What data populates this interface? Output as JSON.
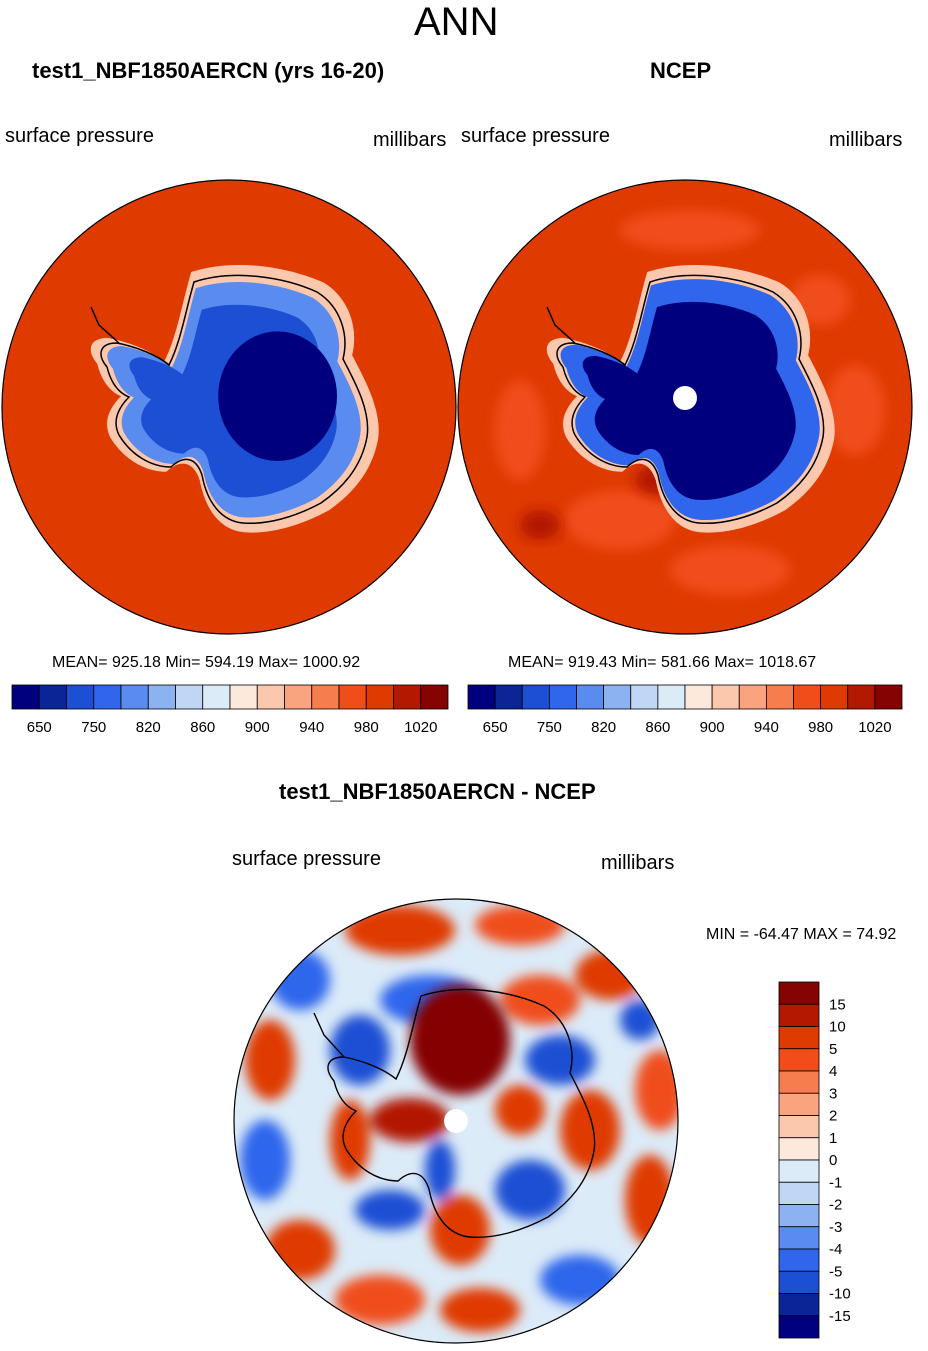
{
  "page": {
    "main_title": "ANN"
  },
  "panels": {
    "model": {
      "title": "test1_NBF1850AERCN (yrs 16-20)",
      "left_label": "surface pressure",
      "right_label": "millibars",
      "stats": "MEAN= 925.18  Min= 594.19  Max= 1000.92"
    },
    "obs": {
      "title": "NCEP",
      "left_label": "surface pressure",
      "right_label": "millibars",
      "stats": "MEAN= 919.43  Min= 581.66  Max= 1018.67"
    },
    "diff": {
      "title": "test1_NBF1850AERCN - NCEP",
      "left_label": "surface pressure",
      "right_label": "millibars",
      "stats": "MIN = -64.47 MAX =  74.92"
    }
  },
  "chart_data": [
    {
      "type": "heatmap",
      "projection": "south polar stereographic",
      "title": "test1_NBF1850AERCN (yrs 16-20)",
      "variable": "surface pressure",
      "units": "millibars",
      "mean": 925.18,
      "min": 594.19,
      "max": 1000.92,
      "colorbar_levels": [
        650,
        700,
        750,
        800,
        820,
        840,
        860,
        880,
        900,
        920,
        940,
        960,
        980,
        1000,
        1020
      ],
      "colorbar_tick_labels": [
        "650",
        "750",
        "820",
        "860",
        "900",
        "940",
        "980",
        "1020"
      ],
      "colorbar_colors": [
        "#00007f",
        "#0a2696",
        "#1d4fd4",
        "#2f66ec",
        "#5a8cf0",
        "#8cb2f2",
        "#c0d6f5",
        "#dcebf8",
        "#fde9dc",
        "#fcc8ad",
        "#f9a47f",
        "#f57d4e",
        "#f04d1b",
        "#df3a00",
        "#b21900",
        "#850300"
      ]
    },
    {
      "type": "heatmap",
      "projection": "south polar stereographic",
      "title": "NCEP",
      "variable": "surface pressure",
      "units": "millibars",
      "mean": 919.43,
      "min": 581.66,
      "max": 1018.67,
      "colorbar_levels": [
        650,
        700,
        750,
        800,
        820,
        840,
        860,
        880,
        900,
        920,
        940,
        960,
        980,
        1000,
        1020
      ],
      "colorbar_tick_labels": [
        "650",
        "750",
        "820",
        "860",
        "900",
        "940",
        "980",
        "1020"
      ],
      "colorbar_colors": [
        "#00007f",
        "#0a2696",
        "#1d4fd4",
        "#2f66ec",
        "#5a8cf0",
        "#8cb2f2",
        "#c0d6f5",
        "#dcebf8",
        "#fde9dc",
        "#fcc8ad",
        "#f9a47f",
        "#f57d4e",
        "#f04d1b",
        "#df3a00",
        "#b21900",
        "#850300"
      ]
    },
    {
      "type": "heatmap",
      "projection": "south polar stereographic",
      "title": "test1_NBF1850AERCN - NCEP",
      "variable": "surface pressure",
      "units": "millibars",
      "min": -64.47,
      "max": 74.92,
      "colorbar_levels": [
        15,
        10,
        5,
        4,
        3,
        2,
        1,
        0,
        -1,
        -2,
        -3,
        -4,
        -5,
        -10,
        -15
      ],
      "colorbar_tick_labels": [
        "15",
        "10",
        "5",
        "4",
        "3",
        "2",
        "1",
        "0",
        "-1",
        "-2",
        "-3",
        "-4",
        "-5",
        "-10",
        "-15"
      ],
      "colorbar_colors": [
        "#850300",
        "#b21900",
        "#df3a00",
        "#f04d1b",
        "#f57d4e",
        "#f9a47f",
        "#fcc8ad",
        "#fde9dc",
        "#dcebf8",
        "#c0d6f5",
        "#8cb2f2",
        "#5a8cf0",
        "#2f66ec",
        "#1d4fd4",
        "#0a2696",
        "#00007f"
      ]
    }
  ]
}
